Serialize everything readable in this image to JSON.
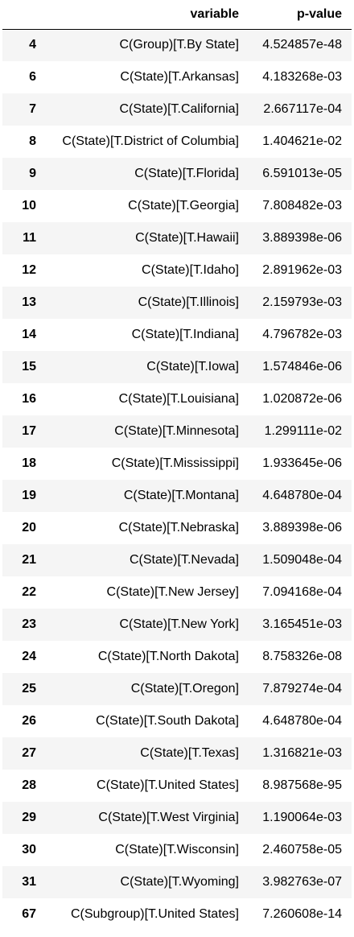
{
  "table": {
    "columns": {
      "index": "",
      "variable": "variable",
      "pvalue": "p-value"
    },
    "rows": [
      {
        "index": "4",
        "variable": "C(Group)[T.By State]",
        "pvalue": "4.524857e-48"
      },
      {
        "index": "6",
        "variable": "C(State)[T.Arkansas]",
        "pvalue": "4.183268e-03"
      },
      {
        "index": "7",
        "variable": "C(State)[T.California]",
        "pvalue": "2.667117e-04"
      },
      {
        "index": "8",
        "variable": "C(State)[T.District of Columbia]",
        "pvalue": "1.404621e-02"
      },
      {
        "index": "9",
        "variable": "C(State)[T.Florida]",
        "pvalue": "6.591013e-05"
      },
      {
        "index": "10",
        "variable": "C(State)[T.Georgia]",
        "pvalue": "7.808482e-03"
      },
      {
        "index": "11",
        "variable": "C(State)[T.Hawaii]",
        "pvalue": "3.889398e-06"
      },
      {
        "index": "12",
        "variable": "C(State)[T.Idaho]",
        "pvalue": "2.891962e-03"
      },
      {
        "index": "13",
        "variable": "C(State)[T.Illinois]",
        "pvalue": "2.159793e-03"
      },
      {
        "index": "14",
        "variable": "C(State)[T.Indiana]",
        "pvalue": "4.796782e-03"
      },
      {
        "index": "15",
        "variable": "C(State)[T.Iowa]",
        "pvalue": "1.574846e-06"
      },
      {
        "index": "16",
        "variable": "C(State)[T.Louisiana]",
        "pvalue": "1.020872e-06"
      },
      {
        "index": "17",
        "variable": "C(State)[T.Minnesota]",
        "pvalue": "1.299111e-02"
      },
      {
        "index": "18",
        "variable": "C(State)[T.Mississippi]",
        "pvalue": "1.933645e-06"
      },
      {
        "index": "19",
        "variable": "C(State)[T.Montana]",
        "pvalue": "4.648780e-04"
      },
      {
        "index": "20",
        "variable": "C(State)[T.Nebraska]",
        "pvalue": "3.889398e-06"
      },
      {
        "index": "21",
        "variable": "C(State)[T.Nevada]",
        "pvalue": "1.509048e-04"
      },
      {
        "index": "22",
        "variable": "C(State)[T.New Jersey]",
        "pvalue": "7.094168e-04"
      },
      {
        "index": "23",
        "variable": "C(State)[T.New York]",
        "pvalue": "3.165451e-03"
      },
      {
        "index": "24",
        "variable": "C(State)[T.North Dakota]",
        "pvalue": "8.758326e-08"
      },
      {
        "index": "25",
        "variable": "C(State)[T.Oregon]",
        "pvalue": "7.879274e-04"
      },
      {
        "index": "26",
        "variable": "C(State)[T.South Dakota]",
        "pvalue": "4.648780e-04"
      },
      {
        "index": "27",
        "variable": "C(State)[T.Texas]",
        "pvalue": "1.316821e-03"
      },
      {
        "index": "28",
        "variable": "C(State)[T.United States]",
        "pvalue": "8.987568e-95"
      },
      {
        "index": "29",
        "variable": "C(State)[T.West Virginia]",
        "pvalue": "1.190064e-03"
      },
      {
        "index": "30",
        "variable": "C(State)[T.Wisconsin]",
        "pvalue": "2.460758e-05"
      },
      {
        "index": "31",
        "variable": "C(State)[T.Wyoming]",
        "pvalue": "3.982763e-07"
      },
      {
        "index": "67",
        "variable": "C(Subgroup)[T.United States]",
        "pvalue": "7.260608e-14"
      }
    ]
  }
}
